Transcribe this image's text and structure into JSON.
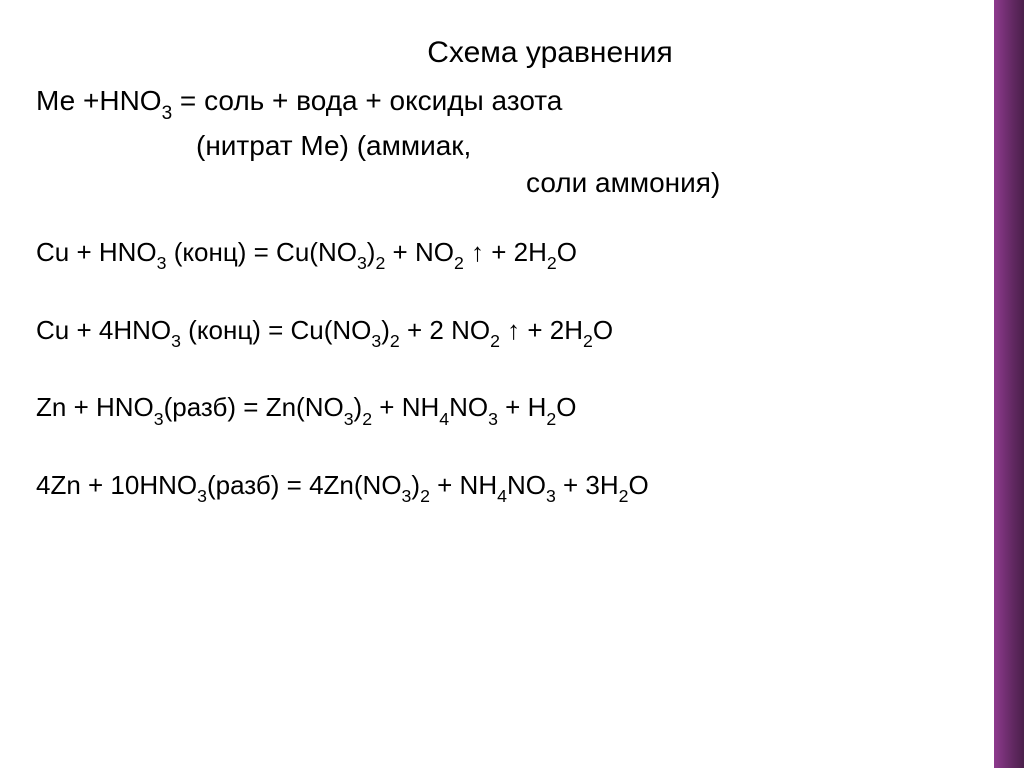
{
  "colors": {
    "background": "#ffffff",
    "text": "#000000",
    "accent_gradient_start": "#8e3a8e",
    "accent_gradient_mid": "#6a2c6a",
    "accent_gradient_end": "#4a1f4a"
  },
  "typography": {
    "title_fontsize": 30,
    "body_fontsize": 28,
    "equation_fontsize": 26,
    "font_family": "Arial"
  },
  "title": "Схема уравнения",
  "scheme": {
    "line1_parts": [
      "Ме +HNO",
      "3",
      "  =  соль   +   вода   +   оксиды азота"
    ],
    "line2": "(нитрат Ме)              (аммиак,",
    "line3": "соли аммония)"
  },
  "equations": [
    {
      "tokens": [
        "Cu +  HNO",
        "3",
        "  (конц) = Cu(NO",
        "3",
        ")",
        "2",
        "  +  NO",
        "2",
        " ↑ + 2H",
        "2",
        "O"
      ]
    },
    {
      "tokens": [
        "Cu + 4HNO",
        "3",
        "  (конц) = Cu(NO",
        "3",
        ")",
        "2",
        " + 2 NO",
        "2",
        " ↑ + 2H",
        "2",
        "O"
      ]
    },
    {
      "tokens": [
        "Zn + HNO",
        "3",
        "(разб) = Zn(NO",
        "3",
        ")",
        "2",
        " + NH",
        "4",
        "NO",
        "3",
        " + H",
        "2",
        "O"
      ]
    },
    {
      "tokens": [
        "4Zn + 10HNO",
        "3",
        "(разб) = 4Zn(NO",
        "3",
        ")",
        "2",
        " + NH",
        "4",
        "NO",
        "3",
        " + 3H",
        "2",
        "O"
      ]
    }
  ]
}
